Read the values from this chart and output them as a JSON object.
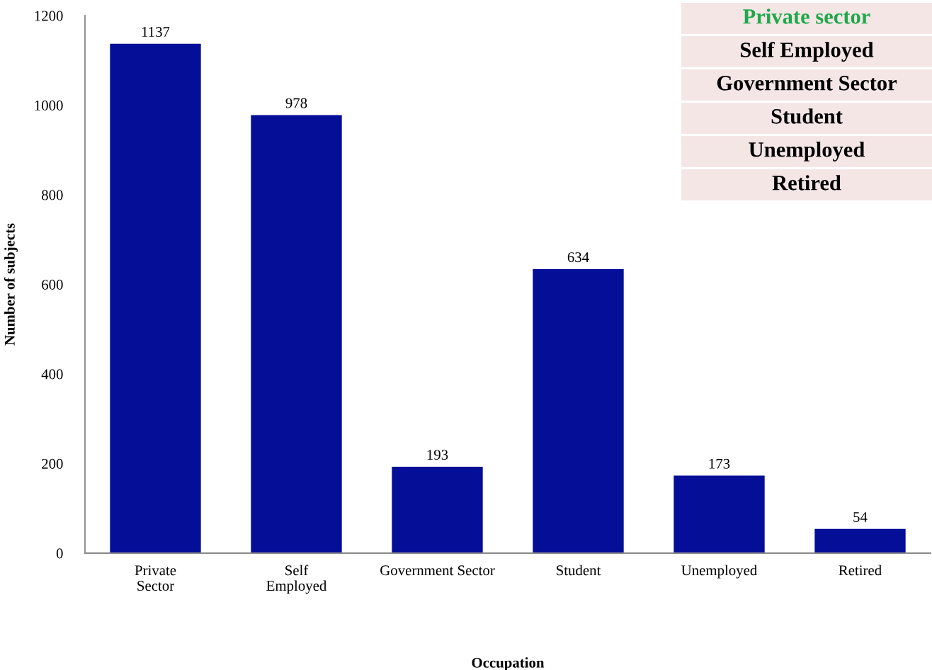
{
  "chart_data": {
    "type": "bar",
    "categories": [
      "Private\nSector",
      "Self\nEmployed",
      "Government Sector",
      "Student",
      "Unemployed",
      "Retired"
    ],
    "values": [
      1137,
      978,
      193,
      634,
      173,
      54
    ],
    "color": "#040e97",
    "xlabel": "Occupation",
    "ylabel": "Number of subjects",
    "ylim": [
      0,
      1200
    ],
    "yticks": [
      0,
      200,
      400,
      600,
      800,
      1000,
      1200
    ],
    "data_labels": true,
    "grid": false,
    "annotations": [
      "Private sector",
      "Self Employed",
      "Government Sector",
      "Student",
      "Unemployed",
      "Retired"
    ]
  }
}
